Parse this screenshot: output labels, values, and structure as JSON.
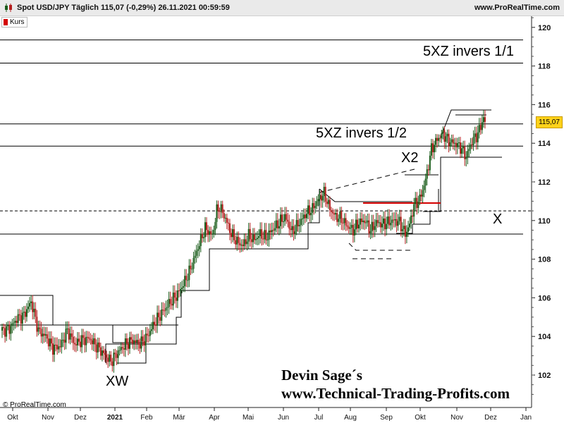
{
  "header": {
    "title": "Spot USD/JPY Täglich 115,07 (-0,29%) 26.11.2021 00:59:59",
    "source": "www.ProRealTime.com"
  },
  "legend": {
    "label": "Kurs"
  },
  "price_label": "115,07",
  "copyright": "© ProRealTime.com",
  "signature": {
    "line1": "Devin Sage´s",
    "line2": "www.Technical-Trading-Profits.com"
  },
  "annotations": {
    "inv_full": "5XZ invers 1/1",
    "inv_half": "5XZ invers 1/2",
    "x2": "X2",
    "x": "X",
    "xw": "XW"
  },
  "colors": {
    "up": "#1a5c1a",
    "down": "#b52020",
    "red_line": "#d40000",
    "price_tag": "#ffd21a"
  },
  "chart_data": {
    "type": "candlestick",
    "title": "Spot USD/JPY Täglich",
    "y_ticks": [
      102,
      104,
      106,
      108,
      110,
      112,
      114,
      116,
      118,
      120
    ],
    "x_ticks": [
      "Okt",
      "Nov",
      "Dez",
      "2021",
      "Feb",
      "Mär",
      "Apr",
      "Mai",
      "Jun",
      "Jul",
      "Aug",
      "Sep",
      "Okt",
      "Nov",
      "Dez",
      "Jan"
    ],
    "ylim": [
      100.5,
      121
    ],
    "last_price": 115.07,
    "horizontal_levels": [
      119.35,
      118.15,
      115.0,
      113.85,
      109.3
    ],
    "dashed_level": 110.5,
    "price_anchors": [
      [
        0,
        104.3
      ],
      [
        5,
        104.4
      ],
      [
        10,
        104.9
      ],
      [
        15,
        105.1
      ],
      [
        20,
        105.8
      ],
      [
        25,
        104.3
      ],
      [
        30,
        104.0
      ],
      [
        35,
        103.4
      ],
      [
        40,
        103.5
      ],
      [
        45,
        104.3
      ],
      [
        50,
        103.6
      ],
      [
        55,
        103.8
      ],
      [
        60,
        103.9
      ],
      [
        65,
        103.5
      ],
      [
        70,
        103.1
      ],
      [
        75,
        102.7
      ],
      [
        80,
        103.2
      ],
      [
        85,
        103.6
      ],
      [
        90,
        103.8
      ],
      [
        95,
        103.6
      ],
      [
        100,
        104.0
      ],
      [
        105,
        104.7
      ],
      [
        110,
        105.2
      ],
      [
        115,
        105.7
      ],
      [
        120,
        106.1
      ],
      [
        125,
        106.7
      ],
      [
        130,
        107.5
      ],
      [
        135,
        108.6
      ],
      [
        140,
        109.6
      ],
      [
        145,
        109.2
      ],
      [
        148,
        110.5
      ],
      [
        150,
        110.7
      ],
      [
        154,
        110.1
      ],
      [
        158,
        109.3
      ],
      [
        162,
        108.9
      ],
      [
        166,
        108.7
      ],
      [
        170,
        109.2
      ],
      [
        174,
        109.0
      ],
      [
        178,
        109.3
      ],
      [
        182,
        109.1
      ],
      [
        186,
        109.5
      ],
      [
        190,
        109.8
      ],
      [
        195,
        110.2
      ],
      [
        200,
        109.4
      ],
      [
        205,
        109.9
      ],
      [
        210,
        110.4
      ],
      [
        214,
        110.6
      ],
      [
        218,
        111.1
      ],
      [
        222,
        111.4
      ],
      [
        226,
        110.6
      ],
      [
        230,
        110.2
      ],
      [
        234,
        110.1
      ],
      [
        238,
        109.7
      ],
      [
        242,
        109.5
      ],
      [
        246,
        109.9
      ],
      [
        250,
        110.0
      ],
      [
        254,
        109.5
      ],
      [
        258,
        109.9
      ],
      [
        262,
        109.8
      ],
      [
        266,
        109.9
      ],
      [
        270,
        110.0
      ],
      [
        274,
        109.9
      ],
      [
        278,
        109.3
      ],
      [
        281,
        109.8
      ],
      [
        284,
        110.8
      ],
      [
        288,
        111.1
      ],
      [
        292,
        112.1
      ],
      [
        296,
        113.7
      ],
      [
        300,
        114.2
      ],
      [
        304,
        114.5
      ],
      [
        308,
        114.1
      ],
      [
        312,
        114.0
      ],
      [
        316,
        113.8
      ],
      [
        320,
        113.3
      ],
      [
        324,
        114.1
      ],
      [
        328,
        114.5
      ],
      [
        332,
        115.3
      ],
      [
        333,
        115.07
      ]
    ]
  }
}
